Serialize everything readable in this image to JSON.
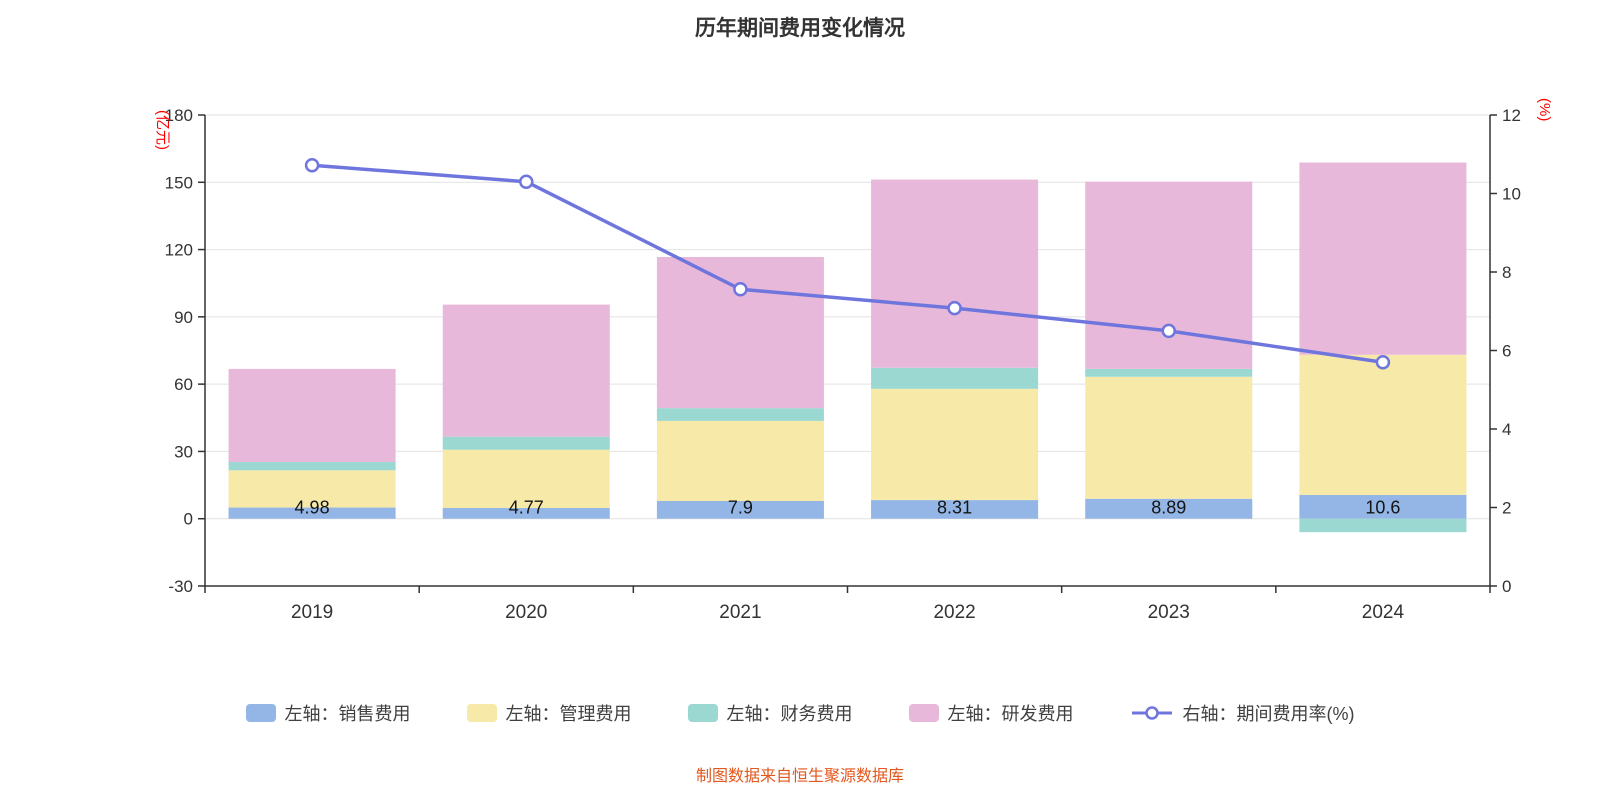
{
  "title": "历年期间费用变化情况",
  "footer": "制图数据来自恒生聚源数据库",
  "left_axis": {
    "unit": "(亿元)",
    "min": -30,
    "max": 180,
    "ticks": [
      180,
      150,
      120,
      90,
      60,
      30,
      0,
      -30
    ]
  },
  "right_axis": {
    "unit": "(%)",
    "min": 0,
    "max": 12,
    "ticks": [
      12,
      10,
      8,
      6,
      4,
      2,
      0
    ]
  },
  "colors": {
    "background": "#ffffff",
    "title_text": "#333333",
    "axis": "#333333",
    "tick_text": "#333333",
    "grid": "#e2e2e2",
    "unit_text": "#ff0000",
    "footer_text": "#e2571d",
    "bar_label_text": "#141414",
    "sales": "#93b6e6",
    "management": "#f7e9a8",
    "finance": "#9cd8d2",
    "rd": "#e8b8da",
    "rate_line": "#6e76dd"
  },
  "chart_data": {
    "type": "bar",
    "subtype": "stacked-bars-with-line-overlay",
    "categories": [
      "2019",
      "2020",
      "2021",
      "2022",
      "2023",
      "2024"
    ],
    "series": [
      {
        "key": "sales",
        "name": "左轴：销售费用",
        "type": "bar",
        "axis": "left",
        "color": "#93b6e6",
        "values": [
          4.98,
          4.77,
          7.9,
          8.31,
          8.89,
          10.6
        ],
        "labels": [
          "4.98",
          "4.77",
          "7.9",
          "8.31",
          "8.89",
          "10.6"
        ]
      },
      {
        "key": "management",
        "name": "左轴：管理费用",
        "type": "bar",
        "axis": "left",
        "color": "#f7e9a8",
        "values": [
          16.6,
          26.0,
          35.7,
          49.6,
          54.4,
          62.5
        ]
      },
      {
        "key": "finance",
        "name": "左轴：财务费用",
        "type": "bar",
        "axis": "left",
        "color": "#9cd8d2",
        "values": [
          3.7,
          5.8,
          5.7,
          9.4,
          3.5,
          -6.0
        ]
      },
      {
        "key": "rd",
        "name": "左轴：研发费用",
        "type": "bar",
        "axis": "left",
        "color": "#e8b8da",
        "values": [
          41.5,
          58.9,
          67.4,
          83.9,
          83.5,
          85.7
        ]
      },
      {
        "key": "rate",
        "name": "右轴：期间费用率(%)",
        "type": "line",
        "axis": "right",
        "color": "#6e76dd",
        "values": [
          10.72,
          10.3,
          7.56,
          7.08,
          6.5,
          5.7
        ]
      }
    ],
    "left_ylim": [
      -30,
      180
    ],
    "right_ylim": [
      0,
      12
    ],
    "grid": true,
    "legend_position": "bottom"
  }
}
